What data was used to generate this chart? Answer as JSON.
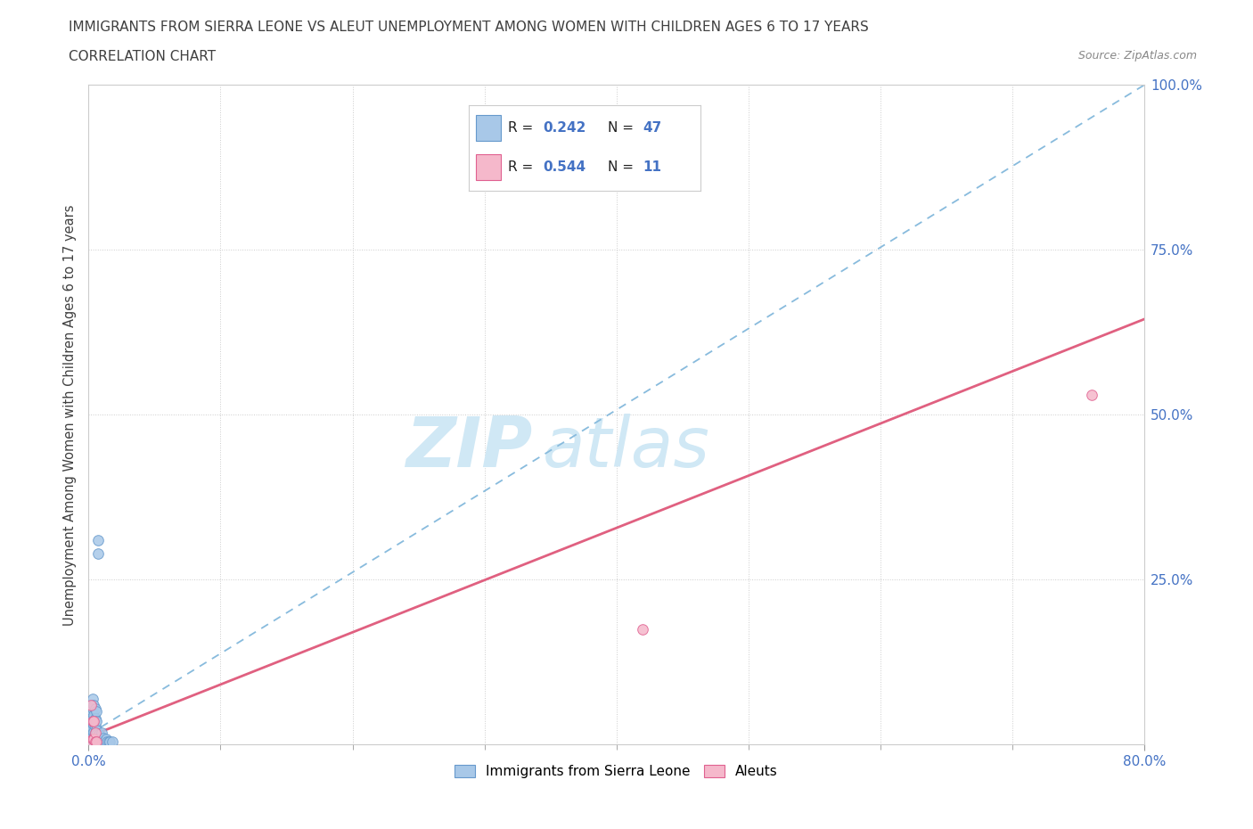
{
  "title": "IMMIGRANTS FROM SIERRA LEONE VS ALEUT UNEMPLOYMENT AMONG WOMEN WITH CHILDREN AGES 6 TO 17 YEARS",
  "subtitle": "CORRELATION CHART",
  "source": "Source: ZipAtlas.com",
  "ylabel": "Unemployment Among Women with Children Ages 6 to 17 years",
  "xlim": [
    0,
    0.8
  ],
  "ylim": [
    0,
    1.0
  ],
  "blue_R": 0.242,
  "blue_N": 47,
  "pink_R": 0.544,
  "pink_N": 11,
  "blue_color": "#a8c8e8",
  "blue_edge": "#6699cc",
  "pink_color": "#f5b8cb",
  "pink_edge": "#e06090",
  "blue_line_color": "#88bbdd",
  "pink_line_color": "#e06080",
  "watermark_zip": "ZIP",
  "watermark_atlas": "atlas",
  "watermark_color": "#d0e8f5",
  "legend_label_blue": "Immigrants from Sierra Leone",
  "legend_label_pink": "Aleuts",
  "blue_scatter_x": [
    0.001,
    0.001,
    0.001,
    0.002,
    0.002,
    0.002,
    0.002,
    0.002,
    0.002,
    0.003,
    0.003,
    0.003,
    0.003,
    0.003,
    0.003,
    0.004,
    0.004,
    0.004,
    0.004,
    0.004,
    0.004,
    0.005,
    0.005,
    0.005,
    0.005,
    0.005,
    0.005,
    0.006,
    0.006,
    0.006,
    0.006,
    0.006,
    0.007,
    0.007,
    0.007,
    0.008,
    0.008,
    0.009,
    0.01,
    0.01,
    0.011,
    0.012,
    0.013,
    0.014,
    0.015,
    0.016,
    0.018
  ],
  "blue_scatter_y": [
    0.02,
    0.015,
    0.01,
    0.06,
    0.05,
    0.04,
    0.025,
    0.015,
    0.008,
    0.07,
    0.055,
    0.04,
    0.025,
    0.012,
    0.005,
    0.06,
    0.045,
    0.03,
    0.02,
    0.01,
    0.005,
    0.055,
    0.04,
    0.028,
    0.018,
    0.01,
    0.005,
    0.05,
    0.035,
    0.022,
    0.015,
    0.008,
    0.29,
    0.31,
    0.008,
    0.015,
    0.005,
    0.012,
    0.018,
    0.005,
    0.01,
    0.005,
    0.008,
    0.005,
    0.005,
    0.005,
    0.005
  ],
  "pink_scatter_x": [
    0.001,
    0.002,
    0.003,
    0.003,
    0.004,
    0.004,
    0.005,
    0.005,
    0.006,
    0.42,
    0.76
  ],
  "pink_scatter_y": [
    0.005,
    0.06,
    0.035,
    0.008,
    0.035,
    0.008,
    0.018,
    0.005,
    0.005,
    0.175,
    0.53
  ],
  "blue_line_x0": 0.0,
  "blue_line_x1": 0.8,
  "blue_line_y0": 0.015,
  "blue_line_y1": 1.0,
  "pink_line_x0": 0.0,
  "pink_line_x1": 0.8,
  "pink_line_y0": 0.012,
  "pink_line_y1": 0.645,
  "background_color": "#ffffff",
  "title_color": "#404040",
  "tick_label_color": "#4472c4",
  "grid_color": "#cccccc",
  "marker_size": 70,
  "ytick_positions": [
    0.0,
    0.25,
    0.5,
    0.75,
    1.0
  ],
  "ytick_labels": [
    "",
    "25.0%",
    "50.0%",
    "75.0%",
    "100.0%"
  ],
  "xtick_positions": [
    0.0,
    0.8
  ],
  "xtick_labels": [
    "0.0%",
    "80.0%"
  ]
}
